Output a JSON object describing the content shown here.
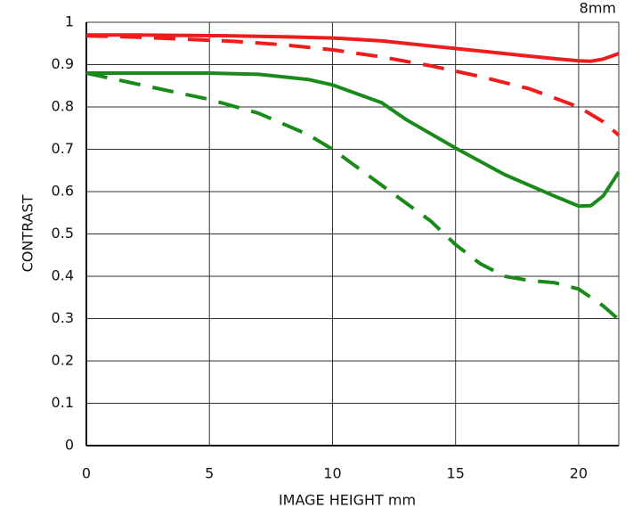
{
  "chart_data": {
    "type": "line",
    "title": "8mm",
    "xlabel": "IMAGE HEIGHT   mm",
    "ylabel": "CONTRAST",
    "xlim": [
      0,
      21.63
    ],
    "ylim": [
      0,
      1
    ],
    "xticks": [
      0,
      5,
      10,
      15,
      20
    ],
    "yticks": [
      0,
      0.1,
      0.2,
      0.3,
      0.4,
      0.5,
      0.6,
      0.7,
      0.8,
      0.9,
      1
    ],
    "grid": true,
    "series": [
      {
        "color": "#ee1c1c",
        "dashed": false,
        "x": [
          0,
          2,
          4,
          6,
          8,
          10,
          12,
          14,
          16,
          18,
          19,
          20,
          20.5,
          21,
          21.63
        ],
        "values": [
          0.97,
          0.97,
          0.969,
          0.968,
          0.966,
          0.963,
          0.956,
          0.944,
          0.932,
          0.92,
          0.914,
          0.909,
          0.908,
          0.913,
          0.926
        ]
      },
      {
        "color": "#ee1c1c",
        "dashed": true,
        "x": [
          0,
          2,
          4,
          6,
          8,
          10,
          12,
          14,
          16,
          18,
          20,
          21,
          21.63
        ],
        "values": [
          0.968,
          0.965,
          0.96,
          0.955,
          0.947,
          0.935,
          0.918,
          0.897,
          0.872,
          0.843,
          0.8,
          0.765,
          0.733
        ]
      },
      {
        "color": "#1a8a1a",
        "dashed": false,
        "x": [
          0,
          5,
          7,
          9,
          10,
          12,
          13,
          15,
          17,
          19,
          20,
          20.5,
          21,
          21.63
        ],
        "values": [
          0.88,
          0.88,
          0.877,
          0.865,
          0.852,
          0.81,
          0.77,
          0.703,
          0.64,
          0.59,
          0.566,
          0.567,
          0.59,
          0.646
        ]
      },
      {
        "color": "#1a8a1a",
        "dashed": true,
        "x": [
          0,
          2,
          4,
          5,
          7,
          9,
          10,
          12,
          14,
          15,
          16,
          17,
          18,
          19,
          20,
          21,
          21.63
        ],
        "values": [
          0.88,
          0.855,
          0.83,
          0.818,
          0.785,
          0.735,
          0.7,
          0.615,
          0.53,
          0.475,
          0.43,
          0.4,
          0.39,
          0.385,
          0.37,
          0.33,
          0.298
        ]
      }
    ]
  }
}
